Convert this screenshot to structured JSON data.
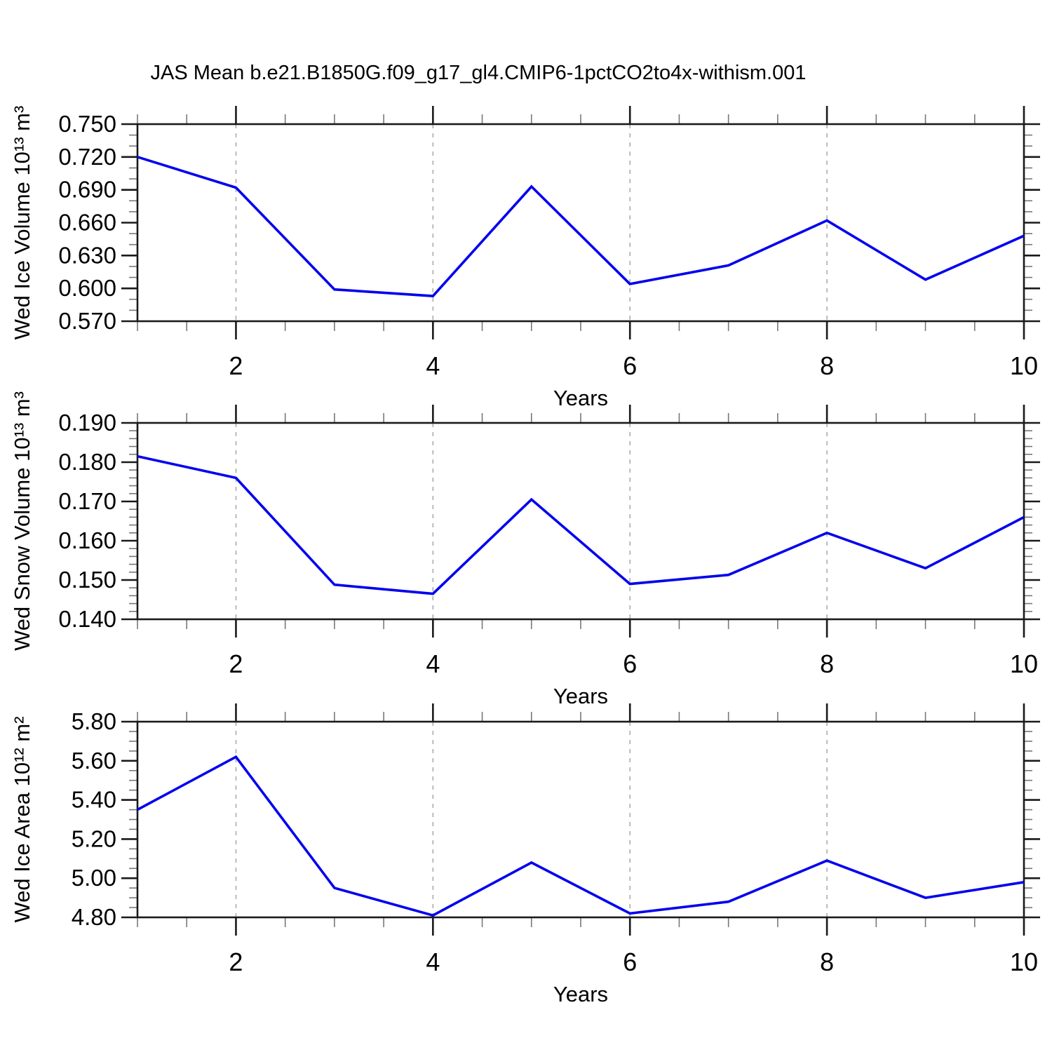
{
  "title": "JAS Mean b.e21.B1850G.f09_g17_gl4.CMIP6-1pctCO2to4x-withism.001",
  "style": {
    "background": "#ffffff",
    "line_color": "#0202ee",
    "axis_color": "#1a1a1a",
    "minor_tick_color": "#787878",
    "grid_color": "#a8a8a8",
    "text_color": "#000000"
  },
  "chart_data": [
    {
      "type": "line",
      "title": "",
      "ylabel": "Wed Ice Volume 10¹³ m³",
      "xlabel": "Years",
      "x": [
        1,
        2,
        3,
        4,
        5,
        6,
        7,
        8,
        9,
        10
      ],
      "values": [
        0.72,
        0.692,
        0.599,
        0.593,
        0.693,
        0.604,
        0.621,
        0.662,
        0.608,
        0.648
      ],
      "ylim": [
        0.57,
        0.75
      ],
      "ytick_labels": [
        "0.570",
        "0.600",
        "0.630",
        "0.660",
        "0.690",
        "0.720",
        "0.750"
      ],
      "ytick_step_major": 0.03,
      "ytick_step_minor": 0.01,
      "xlim": [
        1,
        10
      ],
      "xtick_labels": [
        "2",
        "4",
        "6",
        "8",
        "10"
      ],
      "xtick_values_major": [
        2,
        4,
        6,
        8,
        10
      ],
      "xtick_step_minor": 0.5,
      "grid_x_values": [
        2,
        4,
        6,
        8
      ],
      "grid_style": "dashed-vertical",
      "legend": "none"
    },
    {
      "type": "line",
      "title": "",
      "ylabel": "Wed Snow Volume 10¹³ m³",
      "xlabel": "Years",
      "x": [
        1,
        2,
        3,
        4,
        5,
        6,
        7,
        8,
        9,
        10
      ],
      "values": [
        0.1815,
        0.176,
        0.1488,
        0.1465,
        0.1705,
        0.149,
        0.1513,
        0.162,
        0.153,
        0.166
      ],
      "ylim": [
        0.14,
        0.19
      ],
      "ytick_labels": [
        "0.140",
        "0.150",
        "0.160",
        "0.170",
        "0.180",
        "0.190"
      ],
      "ytick_step_major": 0.01,
      "ytick_step_minor": 0.002,
      "xlim": [
        1,
        10
      ],
      "xtick_labels": [
        "2",
        "4",
        "6",
        "8",
        "10"
      ],
      "xtick_values_major": [
        2,
        4,
        6,
        8,
        10
      ],
      "xtick_step_minor": 0.5,
      "grid_x_values": [
        2,
        4,
        6,
        8
      ],
      "grid_style": "dashed-vertical",
      "legend": "none"
    },
    {
      "type": "line",
      "title": "",
      "ylabel": "Wed Ice Area 10¹² m²",
      "xlabel": "Years",
      "x": [
        1,
        2,
        3,
        4,
        5,
        6,
        7,
        8,
        9,
        10
      ],
      "values": [
        5.35,
        5.62,
        4.95,
        4.81,
        5.08,
        4.82,
        4.88,
        5.09,
        4.9,
        4.98
      ],
      "ylim": [
        4.8,
        5.8
      ],
      "ytick_labels": [
        "4.80",
        "5.00",
        "5.20",
        "5.40",
        "5.60",
        "5.80"
      ],
      "ytick_step_major": 0.2,
      "ytick_step_minor": 0.05,
      "xlim": [
        1,
        10
      ],
      "xtick_labels": [
        "2",
        "4",
        "6",
        "8",
        "10"
      ],
      "xtick_values_major": [
        2,
        4,
        6,
        8,
        10
      ],
      "xtick_step_minor": 0.5,
      "grid_x_values": [
        2,
        4,
        6,
        8
      ],
      "grid_style": "dashed-vertical",
      "legend": "none"
    }
  ]
}
